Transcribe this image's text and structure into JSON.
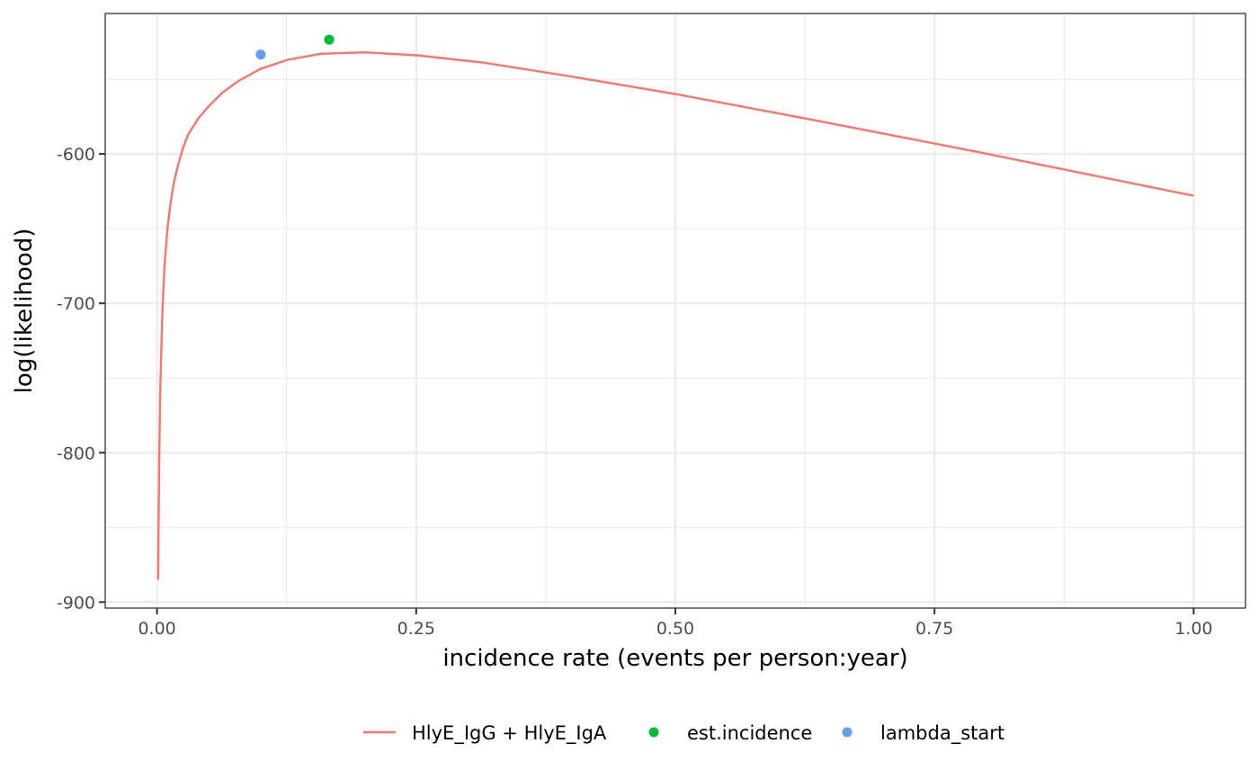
{
  "chart_data": {
    "type": "line",
    "xlabel": "incidence rate (events per person:year)",
    "ylabel": "log(likelihood)",
    "xlim": [
      -0.05,
      1.05
    ],
    "ylim": [
      -904,
      -506
    ],
    "xticks": [
      0.0,
      0.25,
      0.5,
      0.75,
      1.0
    ],
    "xtick_labels": [
      "0.00",
      "0.25",
      "0.50",
      "0.75",
      "1.00"
    ],
    "xminor": [
      0.125,
      0.375,
      0.625,
      0.875
    ],
    "yticks": [
      -900,
      -800,
      -700,
      -600
    ],
    "ytick_labels": [
      "-900",
      "-800",
      "-700",
      "-600"
    ],
    "yminor": [
      -850,
      -750,
      -650,
      -550
    ],
    "grid": true,
    "legend_position": "bottom",
    "series": [
      {
        "name": "HlyE_IgG + HlyE_IgA",
        "type": "line",
        "color": "#F8766D",
        "x": [
          0.001,
          0.002,
          0.003,
          0.005,
          0.007,
          0.01,
          0.013,
          0.016,
          0.02,
          0.025,
          0.03,
          0.04,
          0.05,
          0.063,
          0.079,
          0.1,
          0.126,
          0.158,
          0.2,
          0.251,
          0.316,
          0.398,
          0.501,
          0.631,
          0.794,
          1.0
        ],
        "y": [
          -885,
          -810,
          -760,
          -708,
          -677,
          -650,
          -633,
          -620,
          -608,
          -596,
          -587,
          -576,
          -568,
          -559,
          -551,
          -543,
          -537,
          -533,
          -532,
          -534,
          -539,
          -548,
          -560,
          -577,
          -599,
          -628
        ]
      },
      {
        "name": "est.incidence",
        "type": "point",
        "color": "#00BA38",
        "x": [
          0.166
        ],
        "y": [
          -523.5
        ]
      },
      {
        "name": "lambda_start",
        "type": "point",
        "color": "#619CFF",
        "x": [
          0.1
        ],
        "y": [
          -533.5
        ]
      }
    ]
  }
}
